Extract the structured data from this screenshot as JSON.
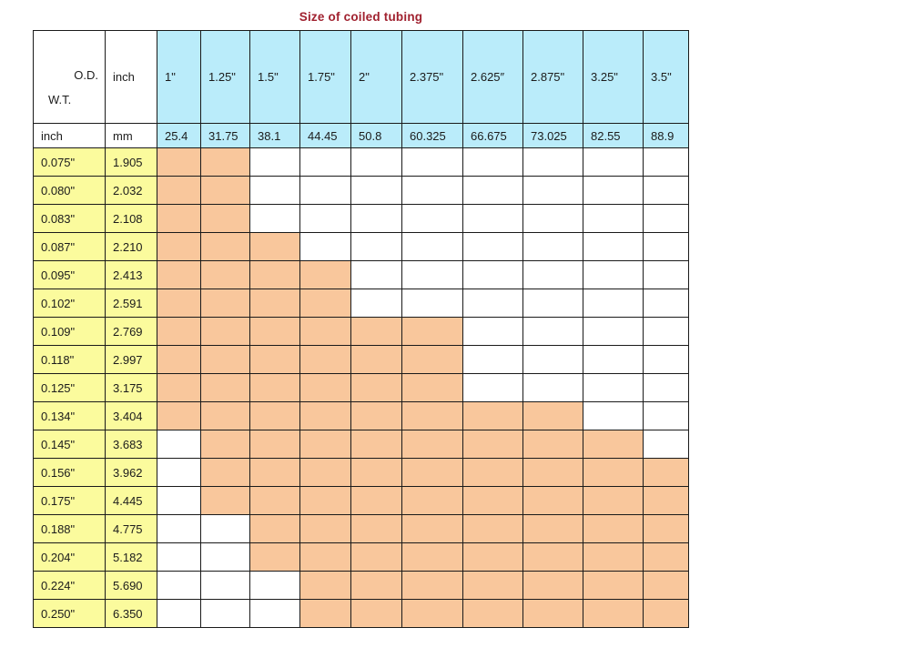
{
  "title": "Size of coiled tubing",
  "colors": {
    "title_text": "#A0212F",
    "header_blue": "#BAECFA",
    "wt_yellow": "#FBFB9D",
    "available_orange": "#F9C79C",
    "grid_border": "#1A1A1A",
    "cell_text": "#1C1C1C"
  },
  "table": {
    "corner_od": "O.D.",
    "corner_wt": "W.T.",
    "od_unit_label": "inch",
    "wt_inch_label": "inch",
    "wt_mm_label": "mm",
    "od_inch": [
      "1\"",
      "1.25\"",
      "1.5\"",
      "1.75\"",
      "2\"",
      "2.375\"",
      "2.625″",
      "2.875\"",
      "3.25\"",
      "3.5\""
    ],
    "od_mm": [
      "25.4",
      "31.75",
      "38.1",
      "44.45",
      "50.8",
      "60.325",
      "66.675",
      "73.025",
      "82.55",
      "88.9"
    ],
    "rows": [
      {
        "wt_inch": "0.075\"",
        "wt_mm": "1.905",
        "available": [
          1,
          1,
          0,
          0,
          0,
          0,
          0,
          0,
          0,
          0
        ]
      },
      {
        "wt_inch": "0.080\"",
        "wt_mm": "2.032",
        "available": [
          1,
          1,
          0,
          0,
          0,
          0,
          0,
          0,
          0,
          0
        ]
      },
      {
        "wt_inch": "0.083\"",
        "wt_mm": "2.108",
        "available": [
          1,
          1,
          0,
          0,
          0,
          0,
          0,
          0,
          0,
          0
        ]
      },
      {
        "wt_inch": "0.087\"",
        "wt_mm": "2.210",
        "available": [
          1,
          1,
          1,
          0,
          0,
          0,
          0,
          0,
          0,
          0
        ]
      },
      {
        "wt_inch": "0.095\"",
        "wt_mm": "2.413",
        "available": [
          1,
          1,
          1,
          1,
          0,
          0,
          0,
          0,
          0,
          0
        ]
      },
      {
        "wt_inch": "0.102\"",
        "wt_mm": "2.591",
        "available": [
          1,
          1,
          1,
          1,
          0,
          0,
          0,
          0,
          0,
          0
        ]
      },
      {
        "wt_inch": "0.109\"",
        "wt_mm": "2.769",
        "available": [
          1,
          1,
          1,
          1,
          1,
          1,
          0,
          0,
          0,
          0
        ]
      },
      {
        "wt_inch": "0.118\"",
        "wt_mm": "2.997",
        "available": [
          1,
          1,
          1,
          1,
          1,
          1,
          0,
          0,
          0,
          0
        ]
      },
      {
        "wt_inch": "0.125\"",
        "wt_mm": "3.175",
        "available": [
          1,
          1,
          1,
          1,
          1,
          1,
          0,
          0,
          0,
          0
        ]
      },
      {
        "wt_inch": "0.134\"",
        "wt_mm": "3.404",
        "available": [
          1,
          1,
          1,
          1,
          1,
          1,
          1,
          1,
          0,
          0
        ]
      },
      {
        "wt_inch": "0.145\"",
        "wt_mm": "3.683",
        "available": [
          0,
          1,
          1,
          1,
          1,
          1,
          1,
          1,
          1,
          0
        ]
      },
      {
        "wt_inch": "0.156\"",
        "wt_mm": "3.962",
        "available": [
          0,
          1,
          1,
          1,
          1,
          1,
          1,
          1,
          1,
          1
        ]
      },
      {
        "wt_inch": "0.175\"",
        "wt_mm": "4.445",
        "available": [
          0,
          1,
          1,
          1,
          1,
          1,
          1,
          1,
          1,
          1
        ]
      },
      {
        "wt_inch": "0.188\"",
        "wt_mm": "4.775",
        "available": [
          0,
          0,
          1,
          1,
          1,
          1,
          1,
          1,
          1,
          1
        ]
      },
      {
        "wt_inch": "0.204\"",
        "wt_mm": "5.182",
        "available": [
          0,
          0,
          1,
          1,
          1,
          1,
          1,
          1,
          1,
          1
        ]
      },
      {
        "wt_inch": "0.224\"",
        "wt_mm": "5.690",
        "available": [
          0,
          0,
          0,
          1,
          1,
          1,
          1,
          1,
          1,
          1
        ]
      },
      {
        "wt_inch": "0.250\"",
        "wt_mm": "6.350",
        "available": [
          0,
          0,
          0,
          1,
          1,
          1,
          1,
          1,
          1,
          1
        ]
      }
    ]
  },
  "chart_data": {
    "type": "table",
    "title": "Size of coiled tubing",
    "legend": "shaded cell = size combination available, blank cell = not available",
    "column_group_label_od": "O.D.",
    "row_group_label_wt": "W.T.",
    "od_columns_inch": [
      "1\"",
      "1.25\"",
      "1.5\"",
      "1.75\"",
      "2\"",
      "2.375\"",
      "2.625″",
      "2.875\"",
      "3.25\"",
      "3.5\""
    ],
    "od_columns_mm": [
      25.4,
      31.75,
      38.1,
      44.45,
      50.8,
      60.325,
      66.675,
      73.025,
      82.55,
      88.9
    ],
    "wt_rows_inch": [
      "0.075\"",
      "0.080\"",
      "0.083\"",
      "0.087\"",
      "0.095\"",
      "0.102\"",
      "0.109\"",
      "0.118\"",
      "0.125\"",
      "0.134\"",
      "0.145\"",
      "0.156\"",
      "0.175\"",
      "0.188\"",
      "0.204\"",
      "0.224\"",
      "0.250\""
    ],
    "wt_rows_mm": [
      1.905,
      2.032,
      2.108,
      2.21,
      2.413,
      2.591,
      2.769,
      2.997,
      3.175,
      3.404,
      3.683,
      3.962,
      4.445,
      4.775,
      5.182,
      5.69,
      6.35
    ],
    "availability_matrix": [
      [
        1,
        1,
        0,
        0,
        0,
        0,
        0,
        0,
        0,
        0
      ],
      [
        1,
        1,
        0,
        0,
        0,
        0,
        0,
        0,
        0,
        0
      ],
      [
        1,
        1,
        0,
        0,
        0,
        0,
        0,
        0,
        0,
        0
      ],
      [
        1,
        1,
        1,
        0,
        0,
        0,
        0,
        0,
        0,
        0
      ],
      [
        1,
        1,
        1,
        1,
        0,
        0,
        0,
        0,
        0,
        0
      ],
      [
        1,
        1,
        1,
        1,
        0,
        0,
        0,
        0,
        0,
        0
      ],
      [
        1,
        1,
        1,
        1,
        1,
        1,
        0,
        0,
        0,
        0
      ],
      [
        1,
        1,
        1,
        1,
        1,
        1,
        0,
        0,
        0,
        0
      ],
      [
        1,
        1,
        1,
        1,
        1,
        1,
        0,
        0,
        0,
        0
      ],
      [
        1,
        1,
        1,
        1,
        1,
        1,
        1,
        1,
        0,
        0
      ],
      [
        0,
        1,
        1,
        1,
        1,
        1,
        1,
        1,
        1,
        0
      ],
      [
        0,
        1,
        1,
        1,
        1,
        1,
        1,
        1,
        1,
        1
      ],
      [
        0,
        1,
        1,
        1,
        1,
        1,
        1,
        1,
        1,
        1
      ],
      [
        0,
        0,
        1,
        1,
        1,
        1,
        1,
        1,
        1,
        1
      ],
      [
        0,
        0,
        1,
        1,
        1,
        1,
        1,
        1,
        1,
        1
      ],
      [
        0,
        0,
        0,
        1,
        1,
        1,
        1,
        1,
        1,
        1
      ],
      [
        0,
        0,
        0,
        1,
        1,
        1,
        1,
        1,
        1,
        1
      ]
    ]
  }
}
